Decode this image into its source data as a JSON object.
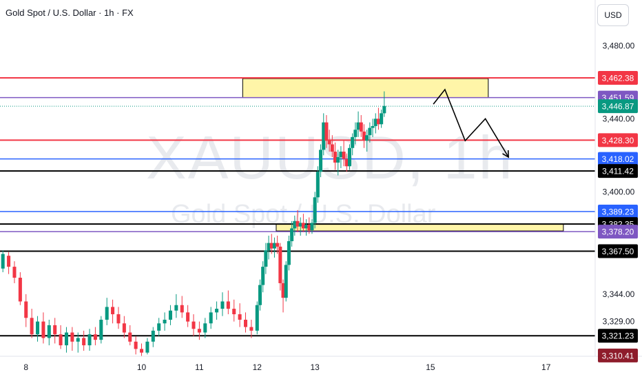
{
  "header": {
    "title": "Gold Spot / U.S. Dollar · 1h · FX"
  },
  "currency_button": {
    "label": "USD"
  },
  "watermark": {
    "symbol": "XAUUSD, 1h",
    "name": "Gold Spot / U.S. Dollar"
  },
  "chart_data": {
    "type": "candlestick",
    "symbol": "XAUUSD",
    "interval": "1h",
    "y_axis": {
      "range": [
        3310,
        3505
      ],
      "ticks": [
        3480.0,
        3440.0,
        3400.0,
        3344.0,
        3329.0
      ],
      "tick_labels": [
        "3,480.00",
        "3,440.00",
        "3,400.00",
        "3,344.00",
        "3,329.00"
      ],
      "position": "right"
    },
    "x_axis": {
      "range": [
        7.55,
        17.85
      ],
      "ticks": [
        8,
        10,
        11,
        12,
        13,
        15,
        17
      ],
      "tick_labels": [
        "8",
        "10",
        "11",
        "12",
        "13",
        "15",
        "17"
      ],
      "unit": "day of month"
    },
    "colors": {
      "up": "#089981",
      "down": "#f23645",
      "red_line": "#f23645",
      "purple_line": "#7e57c2",
      "blue_line": "#2962ff",
      "black_line": "#000000",
      "zone_fill": "#fff5a8"
    },
    "price_labels": [
      {
        "label": "3,462.38",
        "value": 3462.38,
        "color": "#f23645"
      },
      {
        "label": "3,451.59",
        "value": 3451.59,
        "color": "#7e57c2"
      },
      {
        "label": "3,446.87",
        "value": 3446.87,
        "color": "#089981"
      },
      {
        "label": "3,428.30",
        "value": 3428.3,
        "color": "#f23645"
      },
      {
        "label": "3,418.02",
        "value": 3418.02,
        "color": "#2962ff"
      },
      {
        "label": "3,411.42",
        "value": 3411.42,
        "color": "#000000"
      },
      {
        "label": "3,389.23",
        "value": 3389.23,
        "color": "#2962ff"
      },
      {
        "label": "3,382.35",
        "value": 3382.35,
        "color": "#000000"
      },
      {
        "label": "3,378.20",
        "value": 3378.2,
        "color": "#7e57c2"
      },
      {
        "label": "3,367.50",
        "value": 3367.5,
        "color": "#000000"
      },
      {
        "label": "3,321.23",
        "value": 3321.23,
        "color": "#000000"
      },
      {
        "label": "3,310.41",
        "value": 3310.41,
        "color": "#8e1c2b"
      }
    ],
    "horizontal_lines": [
      {
        "value": 3462.38,
        "color": "#f23645",
        "style": "solid"
      },
      {
        "value": 3451.59,
        "color": "#7e57c2",
        "style": "solid"
      },
      {
        "value": 3446.87,
        "color": "#089981",
        "style": "dotted"
      },
      {
        "value": 3428.3,
        "color": "#f23645",
        "style": "solid"
      },
      {
        "value": 3418.02,
        "color": "#2962ff",
        "style": "solid"
      },
      {
        "value": 3411.42,
        "color": "#000000",
        "style": "solid"
      },
      {
        "value": 3389.23,
        "color": "#2962ff",
        "style": "solid"
      },
      {
        "value": 3382.35,
        "color": "#000000",
        "style": "solid"
      },
      {
        "value": 3378.2,
        "color": "#7e57c2",
        "style": "solid"
      },
      {
        "value": 3367.5,
        "color": "#000000",
        "style": "solid"
      },
      {
        "value": 3321.23,
        "color": "#000000",
        "style": "solid"
      }
    ],
    "zones": [
      {
        "x_start": 11.75,
        "x_end": 16.0,
        "y_low": 3451.6,
        "y_high": 3462.0
      },
      {
        "x_start": 12.33,
        "x_end": 17.3,
        "y_low": 3378.6,
        "y_high": 3382.4
      }
    ],
    "projection_path": [
      [
        15.05,
        3448
      ],
      [
        15.25,
        3456
      ],
      [
        15.6,
        3428
      ],
      [
        15.95,
        3440
      ],
      [
        16.35,
        3419
      ]
    ],
    "candles": [
      {
        "x": 7.5,
        "o": 3362,
        "h": 3366,
        "l": 3356,
        "c": 3358
      },
      {
        "x": 7.6,
        "o": 3358,
        "h": 3368,
        "l": 3356,
        "c": 3366
      },
      {
        "x": 7.7,
        "o": 3365,
        "h": 3367,
        "l": 3355,
        "c": 3359
      },
      {
        "x": 7.8,
        "o": 3359,
        "h": 3362,
        "l": 3350,
        "c": 3353
      },
      {
        "x": 7.9,
        "o": 3353,
        "h": 3356,
        "l": 3338,
        "c": 3340
      },
      {
        "x": 8.0,
        "o": 3340,
        "h": 3344,
        "l": 3326,
        "c": 3331
      },
      {
        "x": 8.1,
        "o": 3331,
        "h": 3336,
        "l": 3320,
        "c": 3322
      },
      {
        "x": 8.2,
        "o": 3322,
        "h": 3332,
        "l": 3318,
        "c": 3329
      },
      {
        "x": 8.3,
        "o": 3329,
        "h": 3334,
        "l": 3317,
        "c": 3320
      },
      {
        "x": 8.4,
        "o": 3320,
        "h": 3330,
        "l": 3316,
        "c": 3327
      },
      {
        "x": 8.5,
        "o": 3327,
        "h": 3331,
        "l": 3317,
        "c": 3322
      },
      {
        "x": 8.6,
        "o": 3322,
        "h": 3327,
        "l": 3314,
        "c": 3316
      },
      {
        "x": 8.7,
        "o": 3316,
        "h": 3326,
        "l": 3312,
        "c": 3323
      },
      {
        "x": 8.8,
        "o": 3323,
        "h": 3326,
        "l": 3313,
        "c": 3318
      },
      {
        "x": 8.9,
        "o": 3318,
        "h": 3323,
        "l": 3312,
        "c": 3320
      },
      {
        "x": 9.0,
        "o": 3320,
        "h": 3324,
        "l": 3313,
        "c": 3316
      },
      {
        "x": 9.1,
        "o": 3316,
        "h": 3325,
        "l": 3313,
        "c": 3322
      },
      {
        "x": 9.2,
        "o": 3322,
        "h": 3326,
        "l": 3316,
        "c": 3319
      },
      {
        "x": 9.3,
        "o": 3319,
        "h": 3332,
        "l": 3317,
        "c": 3330
      },
      {
        "x": 9.4,
        "o": 3330,
        "h": 3342,
        "l": 3327,
        "c": 3337
      },
      {
        "x": 9.5,
        "o": 3337,
        "h": 3341,
        "l": 3328,
        "c": 3333
      },
      {
        "x": 9.6,
        "o": 3333,
        "h": 3337,
        "l": 3325,
        "c": 3328
      },
      {
        "x": 9.7,
        "o": 3328,
        "h": 3332,
        "l": 3320,
        "c": 3323
      },
      {
        "x": 9.8,
        "o": 3323,
        "h": 3327,
        "l": 3316,
        "c": 3318
      },
      {
        "x": 9.9,
        "o": 3318,
        "h": 3321,
        "l": 3311,
        "c": 3314
      },
      {
        "x": 10.0,
        "o": 3314,
        "h": 3317,
        "l": 3310,
        "c": 3312
      },
      {
        "x": 10.1,
        "o": 3312,
        "h": 3320,
        "l": 3311,
        "c": 3318
      },
      {
        "x": 10.2,
        "o": 3318,
        "h": 3326,
        "l": 3315,
        "c": 3324
      },
      {
        "x": 10.3,
        "o": 3324,
        "h": 3331,
        "l": 3321,
        "c": 3328
      },
      {
        "x": 10.4,
        "o": 3328,
        "h": 3334,
        "l": 3324,
        "c": 3330
      },
      {
        "x": 10.5,
        "o": 3330,
        "h": 3338,
        "l": 3327,
        "c": 3335
      },
      {
        "x": 10.6,
        "o": 3335,
        "h": 3344,
        "l": 3331,
        "c": 3338
      },
      {
        "x": 10.7,
        "o": 3338,
        "h": 3343,
        "l": 3331,
        "c": 3334
      },
      {
        "x": 10.8,
        "o": 3334,
        "h": 3338,
        "l": 3326,
        "c": 3329
      },
      {
        "x": 10.9,
        "o": 3329,
        "h": 3333,
        "l": 3321,
        "c": 3325
      },
      {
        "x": 11.0,
        "o": 3325,
        "h": 3329,
        "l": 3319,
        "c": 3323
      },
      {
        "x": 11.1,
        "o": 3323,
        "h": 3331,
        "l": 3320,
        "c": 3328
      },
      {
        "x": 11.2,
        "o": 3328,
        "h": 3337,
        "l": 3325,
        "c": 3334
      },
      {
        "x": 11.3,
        "o": 3334,
        "h": 3340,
        "l": 3330,
        "c": 3336
      },
      {
        "x": 11.4,
        "o": 3336,
        "h": 3345,
        "l": 3332,
        "c": 3340
      },
      {
        "x": 11.5,
        "o": 3340,
        "h": 3346,
        "l": 3333,
        "c": 3336
      },
      {
        "x": 11.6,
        "o": 3336,
        "h": 3341,
        "l": 3329,
        "c": 3333
      },
      {
        "x": 11.7,
        "o": 3333,
        "h": 3339,
        "l": 3326,
        "c": 3330
      },
      {
        "x": 11.8,
        "o": 3330,
        "h": 3334,
        "l": 3323,
        "c": 3326
      },
      {
        "x": 11.9,
        "o": 3326,
        "h": 3330,
        "l": 3320,
        "c": 3324
      },
      {
        "x": 12.0,
        "o": 3324,
        "h": 3340,
        "l": 3322,
        "c": 3338
      },
      {
        "x": 12.05,
        "o": 3338,
        "h": 3352,
        "l": 3335,
        "c": 3349
      },
      {
        "x": 12.1,
        "o": 3349,
        "h": 3362,
        "l": 3345,
        "c": 3359
      },
      {
        "x": 12.15,
        "o": 3359,
        "h": 3372,
        "l": 3355,
        "c": 3368
      },
      {
        "x": 12.2,
        "o": 3368,
        "h": 3376,
        "l": 3363,
        "c": 3372
      },
      {
        "x": 12.25,
        "o": 3372,
        "h": 3377,
        "l": 3366,
        "c": 3369
      },
      {
        "x": 12.3,
        "o": 3369,
        "h": 3375,
        "l": 3364,
        "c": 3372
      },
      {
        "x": 12.35,
        "o": 3372,
        "h": 3376,
        "l": 3366,
        "c": 3370
      },
      {
        "x": 12.4,
        "o": 3370,
        "h": 3372,
        "l": 3346,
        "c": 3350
      },
      {
        "x": 12.45,
        "o": 3350,
        "h": 3352,
        "l": 3334,
        "c": 3342
      },
      {
        "x": 12.5,
        "o": 3342,
        "h": 3362,
        "l": 3340,
        "c": 3360
      },
      {
        "x": 12.55,
        "o": 3360,
        "h": 3376,
        "l": 3357,
        "c": 3373
      },
      {
        "x": 12.6,
        "o": 3373,
        "h": 3384,
        "l": 3370,
        "c": 3380
      },
      {
        "x": 12.65,
        "o": 3380,
        "h": 3387,
        "l": 3376,
        "c": 3384
      },
      {
        "x": 12.7,
        "o": 3384,
        "h": 3390,
        "l": 3378,
        "c": 3381
      },
      {
        "x": 12.75,
        "o": 3381,
        "h": 3386,
        "l": 3376,
        "c": 3383
      },
      {
        "x": 12.8,
        "o": 3383,
        "h": 3388,
        "l": 3378,
        "c": 3380
      },
      {
        "x": 12.85,
        "o": 3380,
        "h": 3385,
        "l": 3376,
        "c": 3382
      },
      {
        "x": 12.9,
        "o": 3382,
        "h": 3386,
        "l": 3377,
        "c": 3379
      },
      {
        "x": 12.95,
        "o": 3379,
        "h": 3385,
        "l": 3377,
        "c": 3383
      },
      {
        "x": 13.0,
        "o": 3383,
        "h": 3400,
        "l": 3380,
        "c": 3397
      },
      {
        "x": 13.05,
        "o": 3397,
        "h": 3414,
        "l": 3394,
        "c": 3411
      },
      {
        "x": 13.1,
        "o": 3411,
        "h": 3426,
        "l": 3408,
        "c": 3423
      },
      {
        "x": 13.15,
        "o": 3423,
        "h": 3443,
        "l": 3420,
        "c": 3438
      },
      {
        "x": 13.2,
        "o": 3438,
        "h": 3442,
        "l": 3424,
        "c": 3428
      },
      {
        "x": 13.25,
        "o": 3428,
        "h": 3434,
        "l": 3422,
        "c": 3426
      },
      {
        "x": 13.3,
        "o": 3426,
        "h": 3431,
        "l": 3419,
        "c": 3422
      },
      {
        "x": 13.35,
        "o": 3422,
        "h": 3427,
        "l": 3412,
        "c": 3416
      },
      {
        "x": 13.4,
        "o": 3416,
        "h": 3423,
        "l": 3409,
        "c": 3419
      },
      {
        "x": 13.45,
        "o": 3419,
        "h": 3425,
        "l": 3413,
        "c": 3422
      },
      {
        "x": 13.5,
        "o": 3422,
        "h": 3428,
        "l": 3414,
        "c": 3418
      },
      {
        "x": 13.55,
        "o": 3418,
        "h": 3421,
        "l": 3411,
        "c": 3414
      },
      {
        "x": 13.6,
        "o": 3414,
        "h": 3426,
        "l": 3412,
        "c": 3424
      },
      {
        "x": 13.65,
        "o": 3424,
        "h": 3432,
        "l": 3420,
        "c": 3430
      },
      {
        "x": 13.7,
        "o": 3430,
        "h": 3438,
        "l": 3426,
        "c": 3434
      },
      {
        "x": 13.75,
        "o": 3434,
        "h": 3444,
        "l": 3430,
        "c": 3438
      },
      {
        "x": 13.8,
        "o": 3438,
        "h": 3442,
        "l": 3430,
        "c": 3433
      },
      {
        "x": 13.85,
        "o": 3433,
        "h": 3437,
        "l": 3424,
        "c": 3428
      },
      {
        "x": 13.9,
        "o": 3428,
        "h": 3434,
        "l": 3422,
        "c": 3431
      },
      {
        "x": 13.95,
        "o": 3431,
        "h": 3438,
        "l": 3427,
        "c": 3435
      },
      {
        "x": 14.0,
        "o": 3435,
        "h": 3440,
        "l": 3430,
        "c": 3436
      },
      {
        "x": 14.05,
        "o": 3436,
        "h": 3443,
        "l": 3432,
        "c": 3440
      },
      {
        "x": 14.1,
        "o": 3440,
        "h": 3446,
        "l": 3434,
        "c": 3437
      },
      {
        "x": 14.15,
        "o": 3437,
        "h": 3445,
        "l": 3435,
        "c": 3443
      },
      {
        "x": 14.2,
        "o": 3443,
        "h": 3455,
        "l": 3441,
        "c": 3447
      }
    ]
  }
}
